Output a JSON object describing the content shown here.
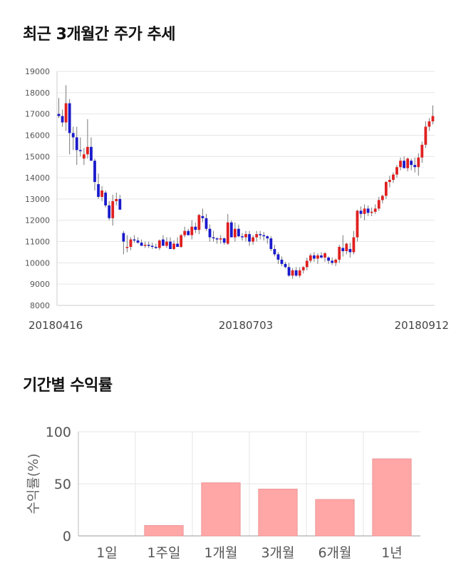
{
  "sections": {
    "price_title": "최근 3개월간 주가 추세",
    "return_title": "기간별 수익률"
  },
  "colors": {
    "up": "#e02020",
    "down": "#1a1acc",
    "bar": "#ffa6a6",
    "bar_edge": "#e89090",
    "grid": "#e6e6e6"
  },
  "chart_data": [
    {
      "type": "candlestick",
      "title": "",
      "ylim": [
        8000,
        19000
      ],
      "yticks": [
        8000,
        9000,
        10000,
        11000,
        12000,
        13000,
        14000,
        15000,
        16000,
        17000,
        18000,
        19000
      ],
      "xtick_labels": [
        "20180416",
        "20180703",
        "20180912"
      ],
      "xtick_index": [
        0,
        52,
        105
      ],
      "grid": true,
      "candles": [
        [
          17000,
          17750,
          16800,
          16900
        ],
        [
          16900,
          17200,
          16400,
          16600
        ],
        [
          16600,
          18350,
          16200,
          17500
        ],
        [
          17500,
          17700,
          15100,
          16100
        ],
        [
          16100,
          16400,
          15300,
          15900
        ],
        [
          15900,
          16400,
          14600,
          15300
        ],
        [
          15300,
          15900,
          15000,
          15250
        ],
        [
          14900,
          15400,
          14600,
          15100
        ],
        [
          15100,
          16750,
          14900,
          15450
        ],
        [
          15450,
          15900,
          14800,
          14800
        ],
        [
          14800,
          14900,
          13400,
          13800
        ],
        [
          13700,
          14200,
          13000,
          13100
        ],
        [
          13100,
          13600,
          12900,
          13400
        ],
        [
          13300,
          13400,
          12600,
          12700
        ],
        [
          12700,
          12900,
          12000,
          12100
        ],
        [
          12100,
          13200,
          11750,
          12900
        ],
        [
          12900,
          13300,
          12700,
          13000
        ],
        [
          13000,
          13200,
          12500,
          12500
        ],
        [
          11400,
          11500,
          10400,
          11000
        ],
        [
          10700,
          11300,
          10500,
          10750
        ],
        [
          10750,
          11200,
          10600,
          11100
        ],
        [
          11100,
          11300,
          10950,
          11050
        ],
        [
          11050,
          11200,
          10900,
          10950
        ],
        [
          10950,
          11100,
          10800,
          10800
        ],
        [
          10800,
          11000,
          10700,
          10850
        ],
        [
          10850,
          11000,
          10700,
          10800
        ],
        [
          10800,
          10950,
          10650,
          10750
        ],
        [
          10750,
          10900,
          10650,
          10700
        ],
        [
          10700,
          11100,
          10600,
          11050
        ],
        [
          11100,
          11300,
          10800,
          10800
        ],
        [
          10800,
          11200,
          10700,
          11000
        ],
        [
          11000,
          11200,
          10650,
          10650
        ],
        [
          10650,
          11050,
          10600,
          10900
        ],
        [
          10900,
          11200,
          10800,
          10750
        ],
        [
          10750,
          11350,
          10700,
          11300
        ],
        [
          11300,
          11700,
          11200,
          11500
        ],
        [
          11500,
          11600,
          11300,
          11300
        ],
        [
          11300,
          12000,
          11100,
          11700
        ],
        [
          11700,
          11900,
          11400,
          11550
        ],
        [
          11550,
          12300,
          11350,
          12250
        ],
        [
          12200,
          12550,
          11900,
          12100
        ],
        [
          12100,
          12300,
          11500,
          11600
        ],
        [
          11600,
          11800,
          11000,
          11200
        ],
        [
          11200,
          11500,
          11000,
          11150
        ],
        [
          11150,
          11200,
          10900,
          11100
        ],
        [
          11100,
          11300,
          10900,
          11150
        ],
        [
          11150,
          11200,
          10850,
          10950
        ],
        [
          10900,
          12300,
          10850,
          11900
        ],
        [
          11900,
          12000,
          11300,
          11200
        ],
        [
          11200,
          11900,
          11000,
          11600
        ],
        [
          11600,
          11800,
          11200,
          11250
        ],
        [
          11250,
          11400,
          11050,
          11200
        ],
        [
          11200,
          11500,
          11000,
          11350
        ],
        [
          11350,
          11500,
          10800,
          11000
        ],
        [
          11000,
          11300,
          10850,
          11200
        ],
        [
          11200,
          11500,
          11000,
          11350
        ],
        [
          11350,
          11500,
          11100,
          11300
        ],
        [
          11300,
          11450,
          11050,
          11250
        ],
        [
          11250,
          11300,
          10900,
          11150
        ],
        [
          11150,
          11250,
          10550,
          10650
        ],
        [
          10650,
          10850,
          10300,
          10400
        ],
        [
          10400,
          10500,
          9950,
          10150
        ],
        [
          10150,
          10300,
          9850,
          9950
        ],
        [
          9950,
          10050,
          9750,
          9800
        ],
        [
          9800,
          10000,
          9350,
          9400
        ],
        [
          9400,
          9750,
          9250,
          9650
        ],
        [
          9650,
          9800,
          9350,
          9400
        ],
        [
          9400,
          9800,
          9300,
          9650
        ],
        [
          9650,
          9850,
          9500,
          9800
        ],
        [
          9800,
          10250,
          9650,
          10100
        ],
        [
          10100,
          10450,
          10000,
          10350
        ],
        [
          10350,
          10500,
          10050,
          10200
        ],
        [
          10200,
          10450,
          9950,
          10350
        ],
        [
          10350,
          10500,
          10200,
          10250
        ],
        [
          10250,
          10500,
          10050,
          10450
        ],
        [
          10250,
          10300,
          9950,
          10100
        ],
        [
          10100,
          10250,
          9900,
          10000
        ],
        [
          10000,
          10200,
          9850,
          10150
        ],
        [
          10150,
          10850,
          10000,
          10750
        ],
        [
          10700,
          11300,
          10300,
          10550
        ],
        [
          10550,
          10950,
          10400,
          10900
        ],
        [
          10650,
          10950,
          10250,
          10500
        ],
        [
          10500,
          11500,
          10400,
          11200
        ],
        [
          11200,
          12500,
          11000,
          12450
        ],
        [
          12450,
          12650,
          12100,
          12300
        ],
        [
          12300,
          12750,
          12000,
          12550
        ],
        [
          12550,
          12700,
          12200,
          12350
        ],
        [
          12350,
          12600,
          12200,
          12400
        ],
        [
          12400,
          12750,
          12300,
          12550
        ],
        [
          12550,
          13100,
          12450,
          12950
        ],
        [
          12950,
          13200,
          12800,
          13150
        ],
        [
          13150,
          13850,
          13000,
          13800
        ],
        [
          13800,
          14100,
          13550,
          13900
        ],
        [
          13900,
          14250,
          13750,
          14150
        ],
        [
          14150,
          14600,
          14000,
          14500
        ],
        [
          14500,
          14950,
          14350,
          14800
        ],
        [
          14800,
          15000,
          14500,
          14450
        ],
        [
          14450,
          14950,
          14300,
          14900
        ],
        [
          14800,
          14900,
          14350,
          14600
        ],
        [
          14600,
          14950,
          14250,
          14500
        ],
        [
          14500,
          15150,
          14100,
          14950
        ],
        [
          14950,
          15700,
          14700,
          15550
        ],
        [
          15550,
          16650,
          15400,
          16400
        ],
        [
          16400,
          16800,
          16200,
          16650
        ],
        [
          16650,
          17400,
          16500,
          16900
        ]
      ]
    },
    {
      "type": "bar",
      "categories": [
        "1일",
        "1주일",
        "1개월",
        "3개월",
        "6개월",
        "1년"
      ],
      "values": [
        0,
        10,
        51,
        45,
        35,
        74
      ],
      "ylabel": "수익률(%)",
      "ylim": [
        0,
        100
      ],
      "yticks": [
        0,
        50,
        100
      ],
      "grid": true
    }
  ]
}
